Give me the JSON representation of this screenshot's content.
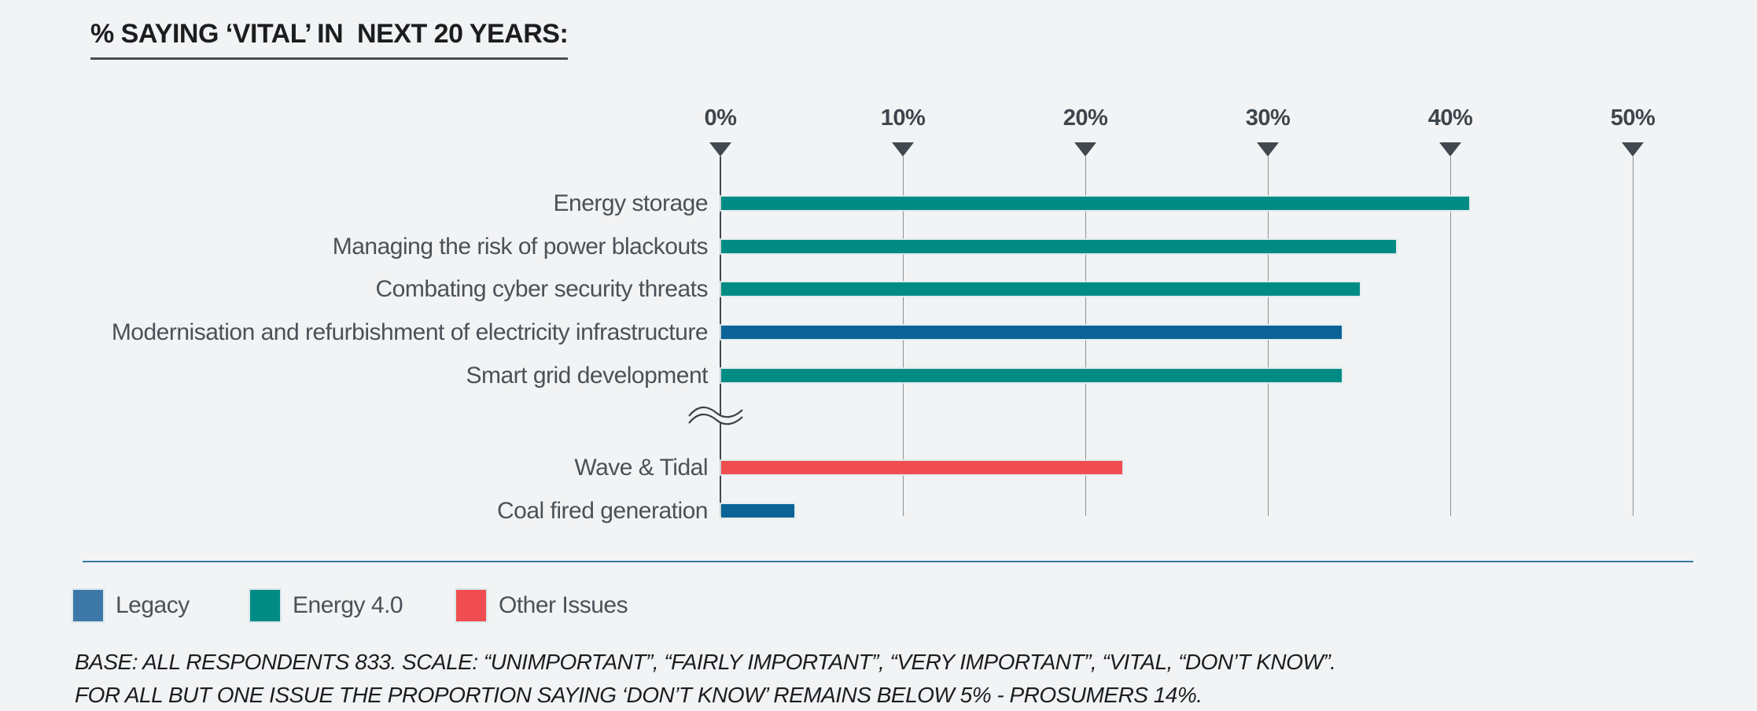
{
  "chart_data": {
    "type": "bar",
    "orientation": "horizontal",
    "title": "% SAYING ‘VITAL’ IN  NEXT 20 YEARS:",
    "x_axis": {
      "unit": "%",
      "tick_labels": [
        "0%",
        "10%",
        "20%",
        "30%",
        "40%",
        "50%"
      ],
      "tick_values": [
        0,
        10,
        20,
        30,
        40,
        50
      ],
      "xlim": [
        0,
        50
      ],
      "grid": true
    },
    "bars": [
      {
        "label": "Energy storage",
        "value": 41,
        "group": "Energy 4.0"
      },
      {
        "label": "Managing the risk of power blackouts",
        "value": 37,
        "group": "Energy 4.0"
      },
      {
        "label": "Combating cyber security threats",
        "value": 35,
        "group": "Energy 4.0"
      },
      {
        "label": "Modernisation and refurbishment of electricity infrastructure",
        "value": 34,
        "group": "Legacy"
      },
      {
        "label": "Smart grid development",
        "value": 34,
        "group": "Energy 4.0"
      },
      {
        "label": "Wave & Tidal",
        "value": 22,
        "group": "Other Issues"
      },
      {
        "label": "Coal fired generation",
        "value": 4,
        "group": "Legacy"
      }
    ],
    "axis_break_after_index": 4,
    "group_colors": {
      "Legacy": "#0B6397",
      "Energy 4.0": "#008C85",
      "Other Issues": "#EF4D4F"
    },
    "legend": [
      {
        "label": "Legacy",
        "color": "#3E78A8"
      },
      {
        "label": "Energy 4.0",
        "color": "#008C85"
      },
      {
        "label": "Other Issues",
        "color": "#EF4D4F"
      }
    ],
    "legend_position": "bottom"
  },
  "footnotes": {
    "line1": "BASE: ALL RESPONDENTS 833.  SCALE: “UNIMPORTANT”, “FAIRLY IMPORTANT”, “VERY IMPORTANT”, “VITAL, “DON’T KNOW”.",
    "line2": "FOR ALL BUT ONE ISSUE THE PROPORTION SAYING ‘DON’T KNOW’ REMAINS BELOW 5% - PROSUMERS 14%."
  },
  "colors": {
    "background": "#F2F3F4",
    "axis_dark": "#41484F",
    "gridline": "#8A9095",
    "tick_label": "#3E454C",
    "category_label": "#4A5158",
    "title_text": "#1B1D1F",
    "divider_blue": "#3879A7"
  }
}
